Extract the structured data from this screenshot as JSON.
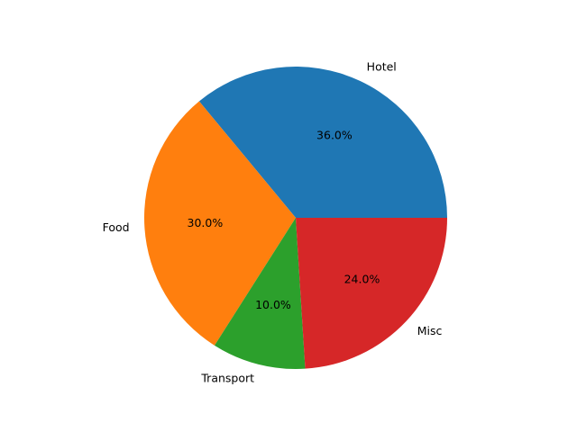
{
  "chart_data": {
    "type": "pie",
    "categories": [
      "Hotel",
      "Food",
      "Transport",
      "Misc"
    ],
    "values": [
      36.0,
      30.0,
      10.0,
      24.0
    ],
    "value_labels": [
      "36.0%",
      "30.0%",
      "10.0%",
      "24.0%"
    ],
    "colors": [
      "#1f77b4",
      "#ff7f0e",
      "#2ca02c",
      "#d62728"
    ],
    "start_angle_deg": 0,
    "direction": "counterclockwise",
    "title": "",
    "legend": "none"
  }
}
